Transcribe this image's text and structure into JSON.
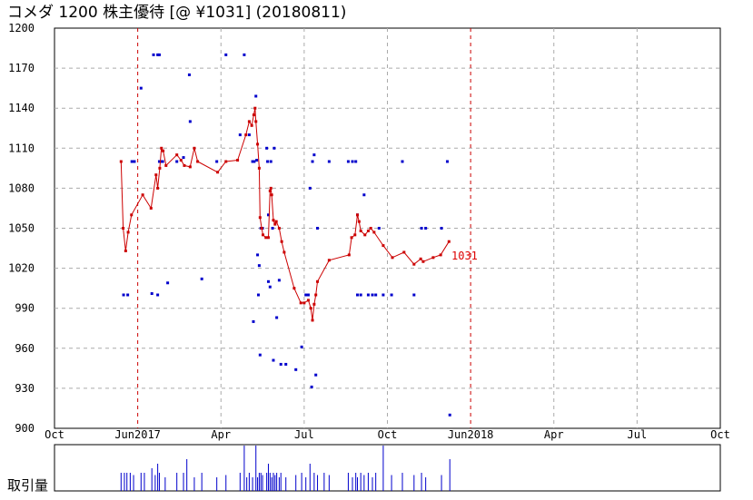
{
  "chart_data": {
    "type": "line",
    "title": "コメダ 1200 株主優待  [@ ¥1031] (20180811)",
    "last_label": "1031",
    "volume_label": "取引量",
    "ylim": [
      900,
      1200
    ],
    "y_ticks": [
      "1200",
      "1170",
      "1140",
      "1110",
      "1080",
      "1050",
      "1020",
      "990",
      "960",
      "930",
      "900"
    ],
    "x_ticks": [
      "Oct",
      "Jun2017",
      "Apr",
      "Jul",
      "Oct",
      "Jun2018",
      "Apr",
      "Jul",
      "Oct"
    ],
    "colors": {
      "price_line": "#cc0000",
      "scatter": "#0000cc",
      "volume": "#0000cc",
      "year_marker": "#cc0000",
      "grid": "#aaaaaa"
    },
    "series": [
      {
        "values": [
          [
            0.8,
            1100
          ],
          [
            0.825,
            1050
          ],
          [
            0.855,
            1033
          ],
          [
            0.885,
            1047
          ],
          [
            0.925,
            1060
          ],
          [
            1.06,
            1075
          ],
          [
            1.16,
            1065
          ],
          [
            1.22,
            1090
          ],
          [
            1.24,
            1080
          ],
          [
            1.265,
            1095
          ],
          [
            1.285,
            1110
          ],
          [
            1.305,
            1108
          ],
          [
            1.34,
            1097
          ],
          [
            1.47,
            1105
          ],
          [
            1.52,
            1101
          ],
          [
            1.56,
            1097
          ],
          [
            1.63,
            1096
          ],
          [
            1.68,
            1110
          ],
          [
            1.72,
            1100
          ],
          [
            1.96,
            1092
          ],
          [
            2.06,
            1100
          ],
          [
            2.2,
            1101
          ],
          [
            2.3,
            1120
          ],
          [
            2.34,
            1130
          ],
          [
            2.37,
            1127
          ],
          [
            2.395,
            1135
          ],
          [
            2.41,
            1140
          ],
          [
            2.42,
            1130
          ],
          [
            2.44,
            1113
          ],
          [
            2.46,
            1095
          ],
          [
            2.47,
            1058
          ],
          [
            2.49,
            1050
          ],
          [
            2.505,
            1045
          ],
          [
            2.54,
            1043
          ],
          [
            2.57,
            1043
          ],
          [
            2.59,
            1078
          ],
          [
            2.6,
            1080
          ],
          [
            2.61,
            1075
          ],
          [
            2.63,
            1056
          ],
          [
            2.65,
            1053
          ],
          [
            2.665,
            1055
          ],
          [
            2.7,
            1050
          ],
          [
            2.73,
            1040
          ],
          [
            2.76,
            1032
          ],
          [
            2.88,
            1005
          ],
          [
            2.96,
            994
          ],
          [
            3.0,
            994
          ],
          [
            3.05,
            996
          ],
          [
            3.08,
            990
          ],
          [
            3.1,
            981
          ],
          [
            3.12,
            993
          ],
          [
            3.14,
            1000
          ],
          [
            3.16,
            1010
          ],
          [
            3.3,
            1026
          ],
          [
            3.54,
            1030
          ],
          [
            3.57,
            1043
          ],
          [
            3.61,
            1045
          ],
          [
            3.64,
            1060
          ],
          [
            3.66,
            1055
          ],
          [
            3.68,
            1048
          ],
          [
            3.73,
            1045
          ],
          [
            3.77,
            1048
          ],
          [
            3.8,
            1050
          ],
          [
            3.84,
            1047
          ],
          [
            3.95,
            1037
          ],
          [
            4.06,
            1028
          ],
          [
            4.2,
            1032
          ],
          [
            4.32,
            1023
          ],
          [
            4.4,
            1027
          ],
          [
            4.43,
            1025
          ],
          [
            4.55,
            1028
          ],
          [
            4.64,
            1030
          ],
          [
            4.74,
            1040
          ]
        ]
      },
      {
        "values": [
          [
            0.83,
            1000
          ],
          [
            0.88,
            1000
          ],
          [
            0.93,
            1100
          ],
          [
            0.96,
            1100
          ],
          [
            1.04,
            1155
          ],
          [
            1.19,
            1180
          ],
          [
            1.24,
            1180
          ],
          [
            1.26,
            1180
          ],
          [
            1.17,
            1001
          ],
          [
            1.24,
            1000
          ],
          [
            1.26,
            1100
          ],
          [
            1.28,
            1100
          ],
          [
            1.3,
            1100
          ],
          [
            1.36,
            1009
          ],
          [
            1.47,
            1100
          ],
          [
            1.55,
            1103
          ],
          [
            1.62,
            1165
          ],
          [
            1.63,
            1130
          ],
          [
            1.77,
            1012
          ],
          [
            1.95,
            1100
          ],
          [
            2.06,
            1180
          ],
          [
            2.23,
            1120
          ],
          [
            2.28,
            1180
          ],
          [
            2.34,
            1120
          ],
          [
            2.38,
            1100
          ],
          [
            2.39,
            980
          ],
          [
            2.4,
            1100
          ],
          [
            2.42,
            1149
          ],
          [
            2.43,
            1101
          ],
          [
            2.44,
            1030
          ],
          [
            2.45,
            1000
          ],
          [
            2.46,
            1022
          ],
          [
            2.47,
            955
          ],
          [
            2.48,
            1050
          ],
          [
            2.5,
            1050
          ],
          [
            2.55,
            1110
          ],
          [
            2.56,
            1100
          ],
          [
            2.57,
            1010
          ],
          [
            2.57,
            1060
          ],
          [
            2.59,
            1006
          ],
          [
            2.6,
            1100
          ],
          [
            2.62,
            1050
          ],
          [
            2.63,
            951
          ],
          [
            2.64,
            1110
          ],
          [
            2.67,
            983
          ],
          [
            2.7,
            1011
          ],
          [
            2.72,
            948
          ],
          [
            2.78,
            948
          ],
          [
            2.9,
            944
          ],
          [
            2.97,
            961
          ],
          [
            3.02,
            1000
          ],
          [
            3.05,
            1000
          ],
          [
            3.07,
            1080
          ],
          [
            3.09,
            931
          ],
          [
            3.1,
            1100
          ],
          [
            3.12,
            1105
          ],
          [
            3.14,
            940
          ],
          [
            3.16,
            1050
          ],
          [
            3.3,
            1100
          ],
          [
            3.53,
            1100
          ],
          [
            3.58,
            1100
          ],
          [
            3.62,
            1100
          ],
          [
            3.64,
            1060
          ],
          [
            3.64,
            1000
          ],
          [
            3.68,
            1000
          ],
          [
            3.72,
            1075
          ],
          [
            3.77,
            1000
          ],
          [
            3.82,
            1000
          ],
          [
            3.86,
            1000
          ],
          [
            3.9,
            1050
          ],
          [
            3.95,
            1000
          ],
          [
            4.05,
            1000
          ],
          [
            4.18,
            1100
          ],
          [
            4.32,
            1000
          ],
          [
            4.41,
            1050
          ],
          [
            4.46,
            1050
          ],
          [
            4.65,
            1050
          ],
          [
            4.72,
            1100
          ],
          [
            4.75,
            910
          ]
        ]
      },
      {
        "values": [
          [
            0.8,
            0.4
          ],
          [
            0.84,
            0.4
          ],
          [
            0.87,
            0.4
          ],
          [
            0.91,
            0.4
          ],
          [
            0.95,
            0.35
          ],
          [
            1.04,
            0.4
          ],
          [
            1.08,
            0.4
          ],
          [
            1.17,
            0.5
          ],
          [
            1.21,
            0.35
          ],
          [
            1.24,
            0.6
          ],
          [
            1.26,
            0.4
          ],
          [
            1.33,
            0.3
          ],
          [
            1.47,
            0.4
          ],
          [
            1.55,
            0.4
          ],
          [
            1.59,
            0.7
          ],
          [
            1.68,
            0.3
          ],
          [
            1.77,
            0.4
          ],
          [
            1.95,
            0.3
          ],
          [
            2.06,
            0.35
          ],
          [
            2.23,
            0.4
          ],
          [
            2.28,
            1.0
          ],
          [
            2.31,
            0.3
          ],
          [
            2.34,
            0.4
          ],
          [
            2.38,
            0.3
          ],
          [
            2.42,
            1.0
          ],
          [
            2.44,
            0.3
          ],
          [
            2.46,
            0.4
          ],
          [
            2.48,
            0.4
          ],
          [
            2.5,
            0.35
          ],
          [
            2.55,
            0.4
          ],
          [
            2.57,
            0.6
          ],
          [
            2.59,
            0.4
          ],
          [
            2.61,
            0.3
          ],
          [
            2.63,
            0.4
          ],
          [
            2.65,
            0.35
          ],
          [
            2.67,
            0.4
          ],
          [
            2.7,
            0.3
          ],
          [
            2.72,
            0.4
          ],
          [
            2.78,
            0.3
          ],
          [
            2.9,
            0.35
          ],
          [
            2.97,
            0.4
          ],
          [
            3.02,
            0.3
          ],
          [
            3.07,
            0.6
          ],
          [
            3.12,
            0.4
          ],
          [
            3.16,
            0.35
          ],
          [
            3.24,
            0.4
          ],
          [
            3.3,
            0.35
          ],
          [
            3.53,
            0.4
          ],
          [
            3.58,
            0.3
          ],
          [
            3.62,
            0.4
          ],
          [
            3.64,
            0.3
          ],
          [
            3.68,
            0.4
          ],
          [
            3.72,
            0.35
          ],
          [
            3.77,
            0.4
          ],
          [
            3.82,
            0.3
          ],
          [
            3.86,
            0.4
          ],
          [
            3.95,
            1.0
          ],
          [
            4.05,
            0.35
          ],
          [
            4.18,
            0.4
          ],
          [
            4.32,
            0.35
          ],
          [
            4.41,
            0.4
          ],
          [
            4.46,
            0.3
          ],
          [
            4.65,
            0.35
          ],
          [
            4.75,
            0.7
          ]
        ]
      }
    ]
  }
}
